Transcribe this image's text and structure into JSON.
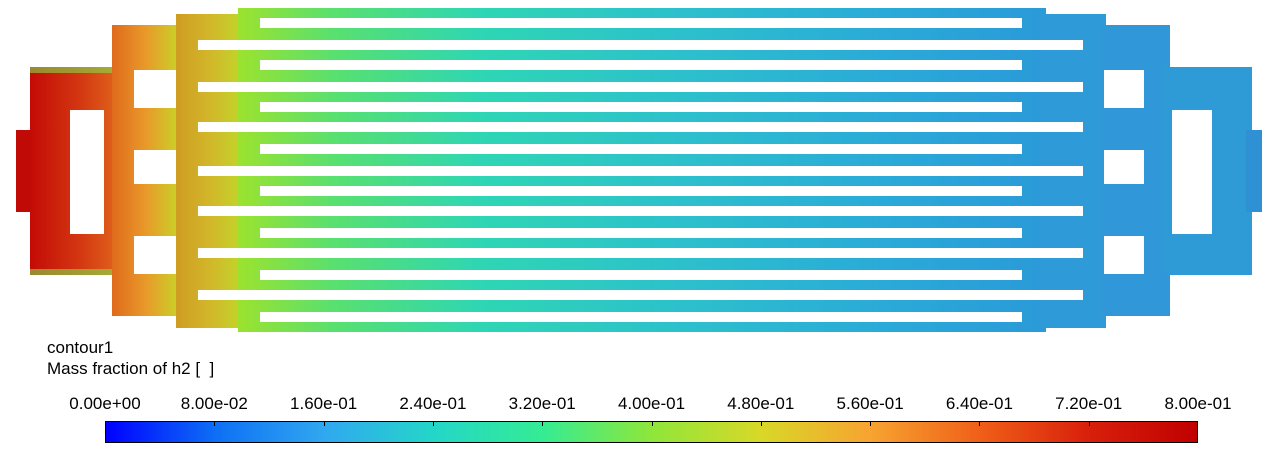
{
  "legend": {
    "title": "contour1",
    "quantity": "Mass fraction of h2 [  ]",
    "tick_labels": [
      "0.00e+00",
      "8.00e-02",
      "1.60e-01",
      "2.40e-01",
      "3.20e-01",
      "4.00e-01",
      "4.80e-01",
      "5.60e-01",
      "6.40e-01",
      "7.20e-01",
      "8.00e-01"
    ],
    "range": [
      0.0,
      0.8
    ]
  },
  "colormap": [
    "#0000ff",
    "#0d6ff5",
    "#30a8f0",
    "#24d6c8",
    "#34ec94",
    "#8fe63a",
    "#d8d828",
    "#f7a430",
    "#f06018",
    "#d8200c",
    "#c00000"
  ],
  "contour_colors": {
    "inlet_core": "#c8200c",
    "inlet_edge": "#e0501a",
    "inlet_rim": "#6ee04a",
    "manifold_in": "#e0781e",
    "channel_start": "#a0e030",
    "channel_mid": "#30d8a8",
    "channel_end": "#30a8d8",
    "outlet": "#3098d8"
  }
}
